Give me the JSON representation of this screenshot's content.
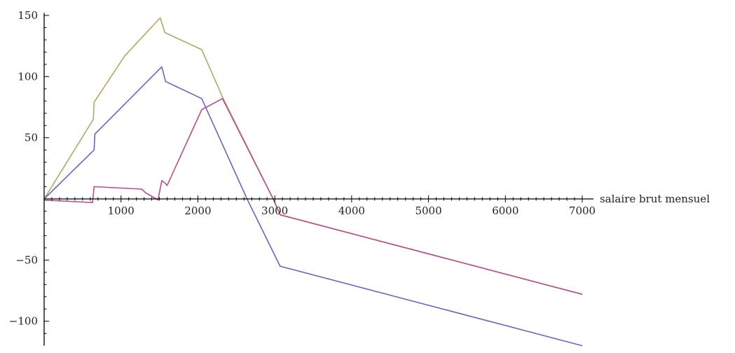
{
  "chart_data": {
    "type": "line",
    "title": "",
    "xlabel": "salaire brut mensuel",
    "ylabel": "",
    "xlim": [
      0,
      7100
    ],
    "ylim": [
      -120,
      152
    ],
    "x_ticks": [
      1000,
      2000,
      3000,
      4000,
      5000,
      6000,
      7000
    ],
    "x_tick_labels": [
      "1000",
      "2000",
      "3000",
      "4000",
      "5000",
      "6000",
      "7000"
    ],
    "y_ticks": [
      -100,
      -50,
      50,
      100,
      150
    ],
    "y_tick_labels": [
      "−100",
      "−50",
      "50",
      "100",
      "150"
    ],
    "grid": false,
    "series": [
      {
        "color": "#b5a665",
        "points": [
          [
            0,
            0
          ],
          [
            640,
            65
          ],
          [
            650,
            79
          ],
          [
            1050,
            117
          ],
          [
            1510,
            148
          ],
          [
            1570,
            136
          ],
          [
            2050,
            122
          ],
          [
            2330,
            82
          ],
          [
            2980,
            0
          ],
          [
            3070,
            -13
          ],
          [
            7000,
            -78
          ]
        ]
      },
      {
        "color": "#6666c2",
        "points": [
          [
            0,
            0
          ],
          [
            650,
            40
          ],
          [
            660,
            53
          ],
          [
            1530,
            108
          ],
          [
            1580,
            96
          ],
          [
            2050,
            82
          ],
          [
            2640,
            0
          ],
          [
            3070,
            -55
          ],
          [
            7000,
            -120
          ]
        ]
      },
      {
        "color": "#b3508c",
        "points": [
          [
            0,
            -1
          ],
          [
            630,
            -3
          ],
          [
            650,
            10
          ],
          [
            1270,
            8
          ],
          [
            1320,
            5
          ],
          [
            1460,
            0
          ],
          [
            1480,
            -1
          ],
          [
            1530,
            15
          ],
          [
            1570,
            13
          ],
          [
            1600,
            11
          ],
          [
            2050,
            73
          ],
          [
            2320,
            82
          ],
          [
            2980,
            0
          ],
          [
            3070,
            -13
          ],
          [
            7000,
            -78
          ]
        ]
      }
    ]
  }
}
